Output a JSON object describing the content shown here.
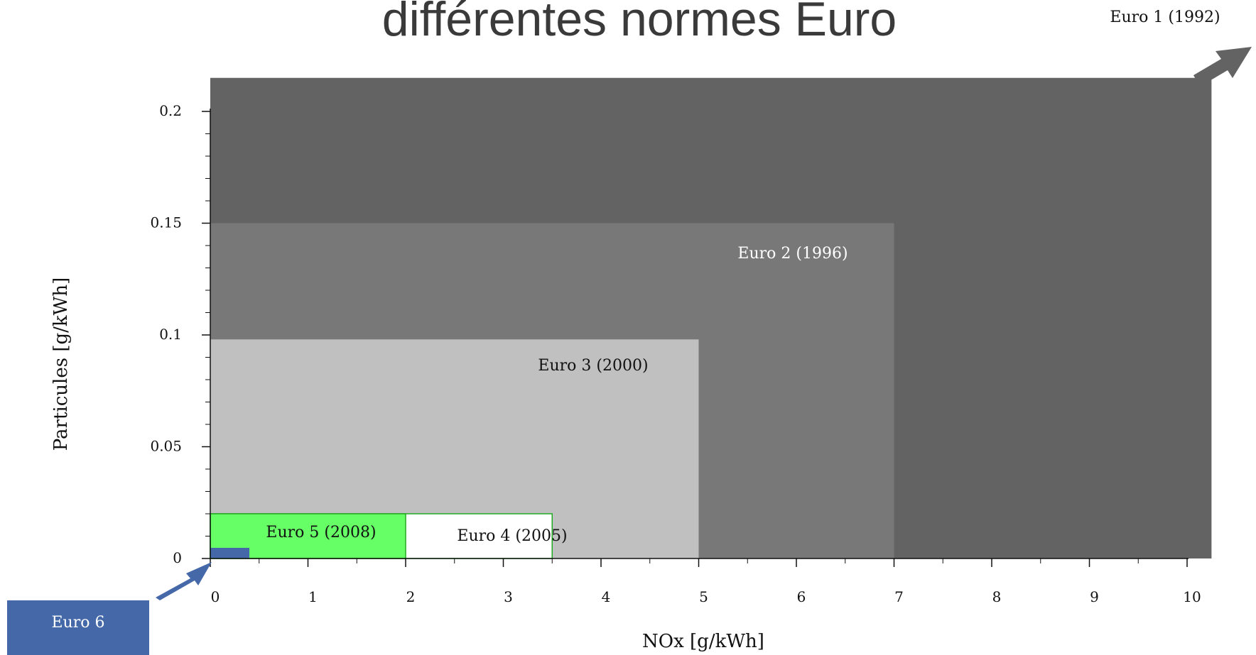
{
  "chart_data": {
    "type": "area",
    "title": "différentes normes Euro",
    "xlabel": "NOx [g/kWh]",
    "ylabel": "Particules [g/kWh]",
    "xlim": [
      0,
      10
    ],
    "ylim": [
      0,
      0.2
    ],
    "x_ticks": [
      "0",
      "1",
      "2",
      "3",
      "4",
      "5",
      "6",
      "7",
      "8",
      "9",
      "10"
    ],
    "y_ticks": [
      "0",
      "0.05",
      "0.1",
      "0.15",
      "0.2"
    ],
    "grid": false,
    "series": [
      {
        "name": "Euro 1 (1992)",
        "nox_limit": 10.25,
        "pm_limit": 0.215,
        "color": "#636363",
        "label_color": "#111111",
        "extends_beyond_axes": true
      },
      {
        "name": "Euro 2 (1996)",
        "nox_limit": 7.0,
        "pm_limit": 0.15,
        "color": "#787878",
        "label_color": "#ffffff"
      },
      {
        "name": "Euro 3 (2000)",
        "nox_limit": 5.0,
        "pm_limit": 0.098,
        "color": "#c0c0c0",
        "label_color": "#111111"
      },
      {
        "name": "Euro 4 (2005)",
        "nox_limit": 3.5,
        "pm_limit": 0.02,
        "color": "#ffffff",
        "label_color": "#111111"
      },
      {
        "name": "Euro 5 (2008)",
        "nox_limit": 2.0,
        "pm_limit": 0.02,
        "color": "#66ff66",
        "label_color": "#111111"
      },
      {
        "name": "Euro 6",
        "nox_limit": 0.4,
        "pm_limit": 0.005,
        "color": "#4468a8",
        "label_color": "#ffffff",
        "callout": true
      }
    ]
  }
}
